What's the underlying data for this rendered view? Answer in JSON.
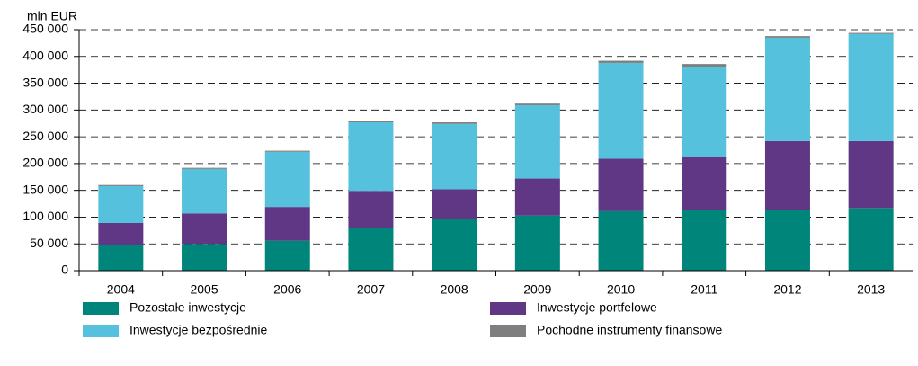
{
  "chart_data": {
    "type": "stacked_bar",
    "y_axis_label": "mln EUR",
    "categories": [
      "2004",
      "2005",
      "2006",
      "2007",
      "2008",
      "2009",
      "2010",
      "2011",
      "2012",
      "2013"
    ],
    "series": [
      {
        "name": "Pozostałe inwestycje",
        "color": "#00857a",
        "values": [
          47000,
          50000,
          56000,
          79000,
          96000,
          103000,
          111000,
          114000,
          114000,
          117000
        ]
      },
      {
        "name": "Inwestycje portfelowe",
        "color": "#5f3785",
        "values": [
          42000,
          57000,
          63000,
          70000,
          56000,
          69000,
          98000,
          98000,
          128000,
          125000
        ]
      },
      {
        "name": "Inwestycje bezpośrednie",
        "color": "#56c1dd",
        "values": [
          69000,
          83000,
          103000,
          128000,
          122000,
          137000,
          179000,
          168000,
          193000,
          200000
        ]
      },
      {
        "name": "Pochodne instrumenty finansowe",
        "color": "#7f7f7f",
        "values": [
          2000,
          2000,
          2000,
          3000,
          3000,
          3000,
          4000,
          6000,
          3000,
          2000
        ]
      }
    ],
    "ylim": [
      0,
      450000
    ],
    "yticks": [
      0,
      {
        "value": 50000,
        "label": "50 000"
      },
      {
        "value": 100000,
        "label": "100 000"
      },
      {
        "value": 150000,
        "label": "150 000"
      },
      {
        "value": 200000,
        "label": "200 000"
      },
      {
        "value": 250000,
        "label": "250 000"
      },
      {
        "value": 300000,
        "label": "300 000"
      },
      {
        "value": 350000,
        "label": "350 000"
      },
      {
        "value": 400000,
        "label": "400 000"
      },
      {
        "value": 450000,
        "label": "450 000"
      }
    ],
    "grid": true
  }
}
